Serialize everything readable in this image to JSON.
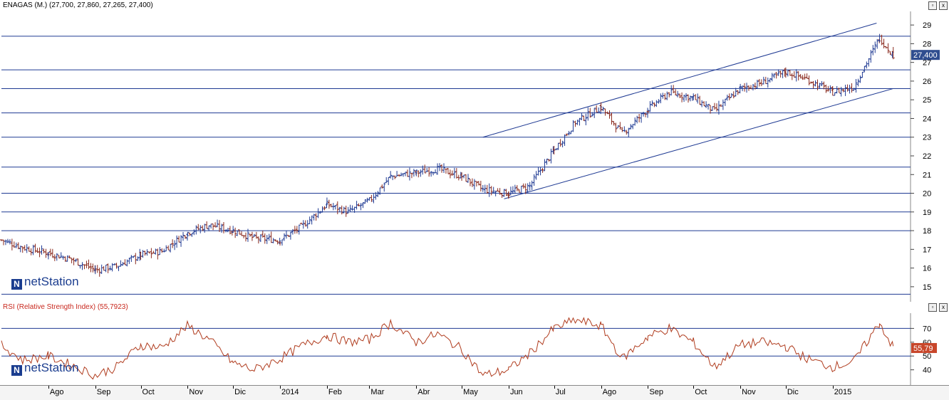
{
  "price_panel": {
    "title": "ENAGAS (M.) (27,700, 27,860, 27,265, 27,400)",
    "last_value_label": "27,400"
  },
  "rsi_panel": {
    "title": "RSI (Relative Strength Index) (55,7923)",
    "last_value_label": "55,79"
  },
  "logo": {
    "brand": "netStation",
    "icon": "netstation-n-logo"
  },
  "window_buttons": {
    "minimize": "▫",
    "close": "x"
  },
  "colors": {
    "price_bars": "#1f3a93",
    "lines": "#1f3a93",
    "rsi_line": "#b03c1e",
    "rsi_badge": "#c8462a",
    "price_badge": "#2f4d8f"
  },
  "chart_data": [
    {
      "type": "ohlc",
      "name": "ENAGAS (M.)",
      "x_axis_labels": [
        "Ago",
        "Sep",
        "Oct",
        "Nov",
        "Dic",
        "2014",
        "Feb",
        "Mar",
        "Abr",
        "May",
        "Jun",
        "Jul",
        "Ago",
        "Sep",
        "Oct",
        "Nov",
        "Dic",
        "2015"
      ],
      "y_ticks": [
        15,
        16,
        17,
        18,
        19,
        20,
        21,
        22,
        23,
        24,
        25,
        26,
        27,
        28,
        29
      ],
      "ylim": [
        14.5,
        29.5
      ],
      "last": {
        "open": 27.7,
        "high": 27.86,
        "low": 27.265,
        "close": 27.4
      },
      "horizontal_levels": [
        14.6,
        18.0,
        19.0,
        20.0,
        21.4,
        23.0,
        24.3,
        25.6,
        26.6,
        28.4
      ],
      "channel": {
        "upper": [
          {
            "x": "2014-05-15",
            "y": 23.0
          },
          {
            "x": "2015-01-30",
            "y": 29.1
          }
        ],
        "lower": [
          {
            "x": "2014-05-29",
            "y": 19.7
          },
          {
            "x": "2015-02-10",
            "y": 25.6
          }
        ]
      },
      "close_series": {
        "x": [
          "2013-07-01",
          "2013-07-15",
          "2013-08-01",
          "2013-08-15",
          "2013-09-01",
          "2013-09-15",
          "2013-10-01",
          "2013-10-15",
          "2013-11-01",
          "2013-11-15",
          "2013-12-01",
          "2013-12-15",
          "2014-01-01",
          "2014-01-15",
          "2014-02-01",
          "2014-02-15",
          "2014-03-01",
          "2014-03-15",
          "2014-04-01",
          "2014-04-15",
          "2014-05-01",
          "2014-05-15",
          "2014-06-01",
          "2014-06-15",
          "2014-07-01",
          "2014-07-15",
          "2014-08-01",
          "2014-08-15",
          "2014-09-01",
          "2014-09-15",
          "2014-10-01",
          "2014-10-15",
          "2014-11-01",
          "2014-11-15",
          "2014-12-01",
          "2014-12-15",
          "2015-01-01",
          "2015-01-15",
          "2015-02-01",
          "2015-02-10"
        ],
        "y": [
          17.5,
          17.1,
          16.8,
          16.5,
          15.9,
          16.1,
          16.7,
          16.9,
          17.9,
          18.3,
          18.0,
          17.6,
          17.5,
          18.2,
          19.4,
          19.0,
          19.6,
          20.9,
          21.1,
          21.3,
          20.9,
          20.2,
          20.0,
          20.4,
          22.3,
          23.8,
          24.6,
          23.2,
          24.5,
          25.4,
          25.1,
          24.4,
          25.6,
          25.9,
          26.5,
          26.1,
          25.4,
          25.7,
          28.3,
          27.4
        ]
      }
    },
    {
      "type": "line",
      "name": "RSI (Relative Strength Index)",
      "y_ticks": [
        40,
        50,
        60,
        70
      ],
      "ylim": [
        30,
        80
      ],
      "last": 55.7923,
      "reference_lines": [
        50,
        70
      ],
      "x": [
        "2013-07-01",
        "2013-07-15",
        "2013-08-01",
        "2013-08-15",
        "2013-09-01",
        "2013-09-15",
        "2013-10-01",
        "2013-10-15",
        "2013-11-01",
        "2013-11-15",
        "2013-12-01",
        "2013-12-15",
        "2014-01-01",
        "2014-01-15",
        "2014-02-01",
        "2014-02-15",
        "2014-03-01",
        "2014-03-15",
        "2014-04-01",
        "2014-04-15",
        "2014-05-01",
        "2014-05-15",
        "2014-06-01",
        "2014-06-15",
        "2014-07-01",
        "2014-07-15",
        "2014-08-01",
        "2014-08-15",
        "2014-09-01",
        "2014-09-15",
        "2014-10-01",
        "2014-10-15",
        "2014-11-01",
        "2014-11-15",
        "2014-12-01",
        "2014-12-15",
        "2015-01-01",
        "2015-01-15",
        "2015-02-01",
        "2015-02-10"
      ],
      "y": [
        58,
        47,
        50,
        44,
        36,
        42,
        58,
        56,
        72,
        62,
        45,
        40,
        48,
        57,
        65,
        60,
        62,
        74,
        60,
        66,
        55,
        36,
        40,
        52,
        70,
        76,
        72,
        48,
        64,
        70,
        60,
        42,
        58,
        60,
        57,
        48,
        42,
        46,
        74,
        56
      ]
    }
  ]
}
